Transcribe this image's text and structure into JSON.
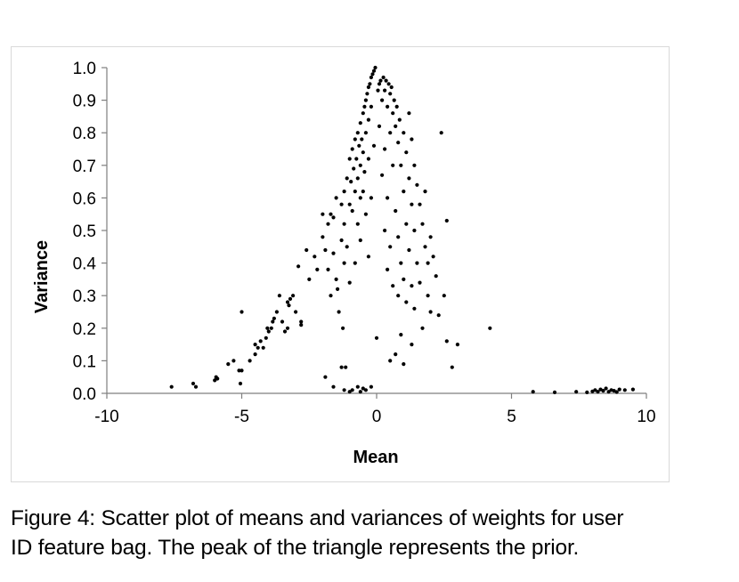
{
  "chart_data": {
    "type": "scatter",
    "title": "",
    "xlabel": "Mean",
    "ylabel": "Variance",
    "xlim": [
      -10,
      10
    ],
    "ylim": [
      0.0,
      1.0
    ],
    "x_ticks": [
      -10,
      -5,
      0,
      5,
      10
    ],
    "x_tick_labels": [
      "-10",
      "-5",
      "0",
      "5",
      "10"
    ],
    "y_ticks": [
      0.0,
      0.1,
      0.2,
      0.3,
      0.4,
      0.5,
      0.6,
      0.7,
      0.8,
      0.9,
      1.0
    ],
    "y_tick_labels": [
      "0.0",
      "0.1",
      "0.2",
      "0.3",
      "0.4",
      "0.5",
      "0.6",
      "0.7",
      "0.8",
      "0.9",
      "1.0"
    ],
    "grid": false,
    "marker_color": "#000000",
    "axis_color": "#7f7f7f",
    "series": [
      {
        "name": "weights",
        "points": [
          [
            -7.6,
            0.02
          ],
          [
            -6.8,
            0.03
          ],
          [
            -6.7,
            0.02
          ],
          [
            -6.0,
            0.04
          ],
          [
            -5.95,
            0.05
          ],
          [
            -5.9,
            0.045
          ],
          [
            -5.5,
            0.09
          ],
          [
            -5.3,
            0.1
          ],
          [
            -5.1,
            0.07
          ],
          [
            -5.05,
            0.03
          ],
          [
            -5.0,
            0.25
          ],
          [
            -5.0,
            0.07
          ],
          [
            -4.7,
            0.1
          ],
          [
            -4.5,
            0.12
          ],
          [
            -4.5,
            0.15
          ],
          [
            -4.4,
            0.14
          ],
          [
            -4.3,
            0.16
          ],
          [
            -4.2,
            0.14
          ],
          [
            -4.1,
            0.17
          ],
          [
            -4.05,
            0.2
          ],
          [
            -4.0,
            0.19
          ],
          [
            -3.9,
            0.2
          ],
          [
            -3.85,
            0.22
          ],
          [
            -3.8,
            0.23
          ],
          [
            -3.7,
            0.25
          ],
          [
            -3.6,
            0.3
          ],
          [
            -3.5,
            0.22
          ],
          [
            -3.4,
            0.19
          ],
          [
            -3.3,
            0.2
          ],
          [
            -3.3,
            0.28
          ],
          [
            -3.25,
            0.27
          ],
          [
            -3.2,
            0.29
          ],
          [
            -3.1,
            0.3
          ],
          [
            -3.0,
            0.25
          ],
          [
            -2.9,
            0.39
          ],
          [
            -2.8,
            0.22
          ],
          [
            -2.8,
            0.21
          ],
          [
            -2.6,
            0.44
          ],
          [
            -2.5,
            0.35
          ],
          [
            -2.3,
            0.42
          ],
          [
            -2.2,
            0.38
          ],
          [
            -2.0,
            0.55
          ],
          [
            -2.0,
            0.48
          ],
          [
            -1.9,
            0.44
          ],
          [
            -1.9,
            0.05
          ],
          [
            -1.8,
            0.52
          ],
          [
            -1.8,
            0.38
          ],
          [
            -1.7,
            0.55
          ],
          [
            -1.7,
            0.3
          ],
          [
            -1.6,
            0.54
          ],
          [
            -1.6,
            0.43
          ],
          [
            -1.6,
            0.02
          ],
          [
            -1.5,
            0.6
          ],
          [
            -1.5,
            0.35
          ],
          [
            -1.45,
            0.32
          ],
          [
            -1.4,
            0.25
          ],
          [
            -1.3,
            0.58
          ],
          [
            -1.3,
            0.47
          ],
          [
            -1.3,
            0.08
          ],
          [
            -1.25,
            0.2
          ],
          [
            -1.2,
            0.62
          ],
          [
            -1.2,
            0.52
          ],
          [
            -1.2,
            0.4
          ],
          [
            -1.2,
            0.01
          ],
          [
            -1.15,
            0.08
          ],
          [
            -1.1,
            0.66
          ],
          [
            -1.1,
            0.45
          ],
          [
            -1.0,
            0.72
          ],
          [
            -1.0,
            0.58
          ],
          [
            -1.0,
            0.34
          ],
          [
            -1.0,
            0.005
          ],
          [
            -0.95,
            0.65
          ],
          [
            -0.9,
            0.75
          ],
          [
            -0.9,
            0.56
          ],
          [
            -0.9,
            0.01
          ],
          [
            -0.85,
            0.69
          ],
          [
            -0.8,
            0.78
          ],
          [
            -0.8,
            0.62
          ],
          [
            -0.8,
            0.4
          ],
          [
            -0.75,
            0.72
          ],
          [
            -0.7,
            0.8
          ],
          [
            -0.7,
            0.66
          ],
          [
            -0.7,
            0.52
          ],
          [
            -0.7,
            0.02
          ],
          [
            -0.65,
            0.76
          ],
          [
            -0.6,
            0.83
          ],
          [
            -0.6,
            0.7
          ],
          [
            -0.6,
            0.6
          ],
          [
            -0.6,
            0.47
          ],
          [
            -0.6,
            0.005
          ],
          [
            -0.55,
            0.78
          ],
          [
            -0.5,
            0.86
          ],
          [
            -0.5,
            0.74
          ],
          [
            -0.5,
            0.62
          ],
          [
            -0.5,
            0.015
          ],
          [
            -0.45,
            0.88
          ],
          [
            -0.45,
            0.68
          ],
          [
            -0.4,
            0.9
          ],
          [
            -0.4,
            0.8
          ],
          [
            -0.4,
            0.55
          ],
          [
            -0.4,
            0.01
          ],
          [
            -0.35,
            0.92
          ],
          [
            -0.3,
            0.94
          ],
          [
            -0.3,
            0.84
          ],
          [
            -0.3,
            0.72
          ],
          [
            -0.3,
            0.42
          ],
          [
            -0.25,
            0.95
          ],
          [
            -0.2,
            0.97
          ],
          [
            -0.2,
            0.88
          ],
          [
            -0.2,
            0.6
          ],
          [
            -0.2,
            0.02
          ],
          [
            -0.15,
            0.98
          ],
          [
            -0.1,
            0.99
          ],
          [
            -0.1,
            0.76
          ],
          [
            -0.05,
            1.0
          ],
          [
            0.0,
            0.17
          ],
          [
            0.05,
            0.93
          ],
          [
            0.1,
            0.95
          ],
          [
            0.1,
            0.82
          ],
          [
            0.15,
            0.96
          ],
          [
            0.2,
            0.9
          ],
          [
            0.2,
            0.67
          ],
          [
            0.25,
            0.97
          ],
          [
            0.3,
            0.93
          ],
          [
            0.3,
            0.75
          ],
          [
            0.3,
            0.5
          ],
          [
            0.35,
            0.96
          ],
          [
            0.4,
            0.88
          ],
          [
            0.4,
            0.6
          ],
          [
            0.4,
            0.38
          ],
          [
            0.45,
            0.95
          ],
          [
            0.5,
            0.92
          ],
          [
            0.5,
            0.8
          ],
          [
            0.5,
            0.45
          ],
          [
            0.5,
            0.1
          ],
          [
            0.55,
            0.94
          ],
          [
            0.6,
            0.86
          ],
          [
            0.6,
            0.7
          ],
          [
            0.6,
            0.33
          ],
          [
            0.65,
            0.9
          ],
          [
            0.7,
            0.82
          ],
          [
            0.7,
            0.56
          ],
          [
            0.7,
            0.12
          ],
          [
            0.75,
            0.88
          ],
          [
            0.8,
            0.77
          ],
          [
            0.8,
            0.48
          ],
          [
            0.8,
            0.3
          ],
          [
            0.85,
            0.84
          ],
          [
            0.9,
            0.7
          ],
          [
            0.9,
            0.4
          ],
          [
            0.9,
            0.18
          ],
          [
            1.0,
            0.8
          ],
          [
            1.0,
            0.62
          ],
          [
            1.0,
            0.35
          ],
          [
            1.0,
            0.09
          ],
          [
            1.1,
            0.74
          ],
          [
            1.1,
            0.52
          ],
          [
            1.1,
            0.28
          ],
          [
            1.2,
            0.86
          ],
          [
            1.2,
            0.66
          ],
          [
            1.2,
            0.44
          ],
          [
            1.3,
            0.78
          ],
          [
            1.3,
            0.58
          ],
          [
            1.3,
            0.33
          ],
          [
            1.3,
            0.15
          ],
          [
            1.4,
            0.7
          ],
          [
            1.4,
            0.5
          ],
          [
            1.4,
            0.26
          ],
          [
            1.5,
            0.64
          ],
          [
            1.5,
            0.4
          ],
          [
            1.6,
            0.58
          ],
          [
            1.6,
            0.34
          ],
          [
            1.7,
            0.52
          ],
          [
            1.7,
            0.2
          ],
          [
            1.8,
            0.45
          ],
          [
            1.8,
            0.62
          ],
          [
            1.9,
            0.4
          ],
          [
            1.9,
            0.3
          ],
          [
            2.0,
            0.48
          ],
          [
            2.0,
            0.25
          ],
          [
            2.1,
            0.42
          ],
          [
            2.2,
            0.36
          ],
          [
            2.3,
            0.24
          ],
          [
            2.4,
            0.8
          ],
          [
            2.5,
            0.3
          ],
          [
            2.6,
            0.53
          ],
          [
            2.6,
            0.16
          ],
          [
            2.8,
            0.08
          ],
          [
            3.0,
            0.15
          ],
          [
            4.2,
            0.2
          ],
          [
            5.8,
            0.005
          ],
          [
            6.6,
            0.003
          ],
          [
            7.4,
            0.005
          ],
          [
            7.8,
            0.003
          ],
          [
            8.0,
            0.006
          ],
          [
            8.1,
            0.01
          ],
          [
            8.2,
            0.005
          ],
          [
            8.3,
            0.012
          ],
          [
            8.4,
            0.008
          ],
          [
            8.5,
            0.015
          ],
          [
            8.6,
            0.005
          ],
          [
            8.7,
            0.01
          ],
          [
            8.8,
            0.008
          ],
          [
            8.9,
            0.004
          ],
          [
            9.0,
            0.012
          ],
          [
            9.2,
            0.01
          ],
          [
            9.5,
            0.012
          ]
        ]
      }
    ]
  },
  "caption": {
    "line1": "Figure 4: Scatter plot of means and variances of weights for user",
    "line2": "ID feature bag. The peak of the triangle represents the prior."
  }
}
